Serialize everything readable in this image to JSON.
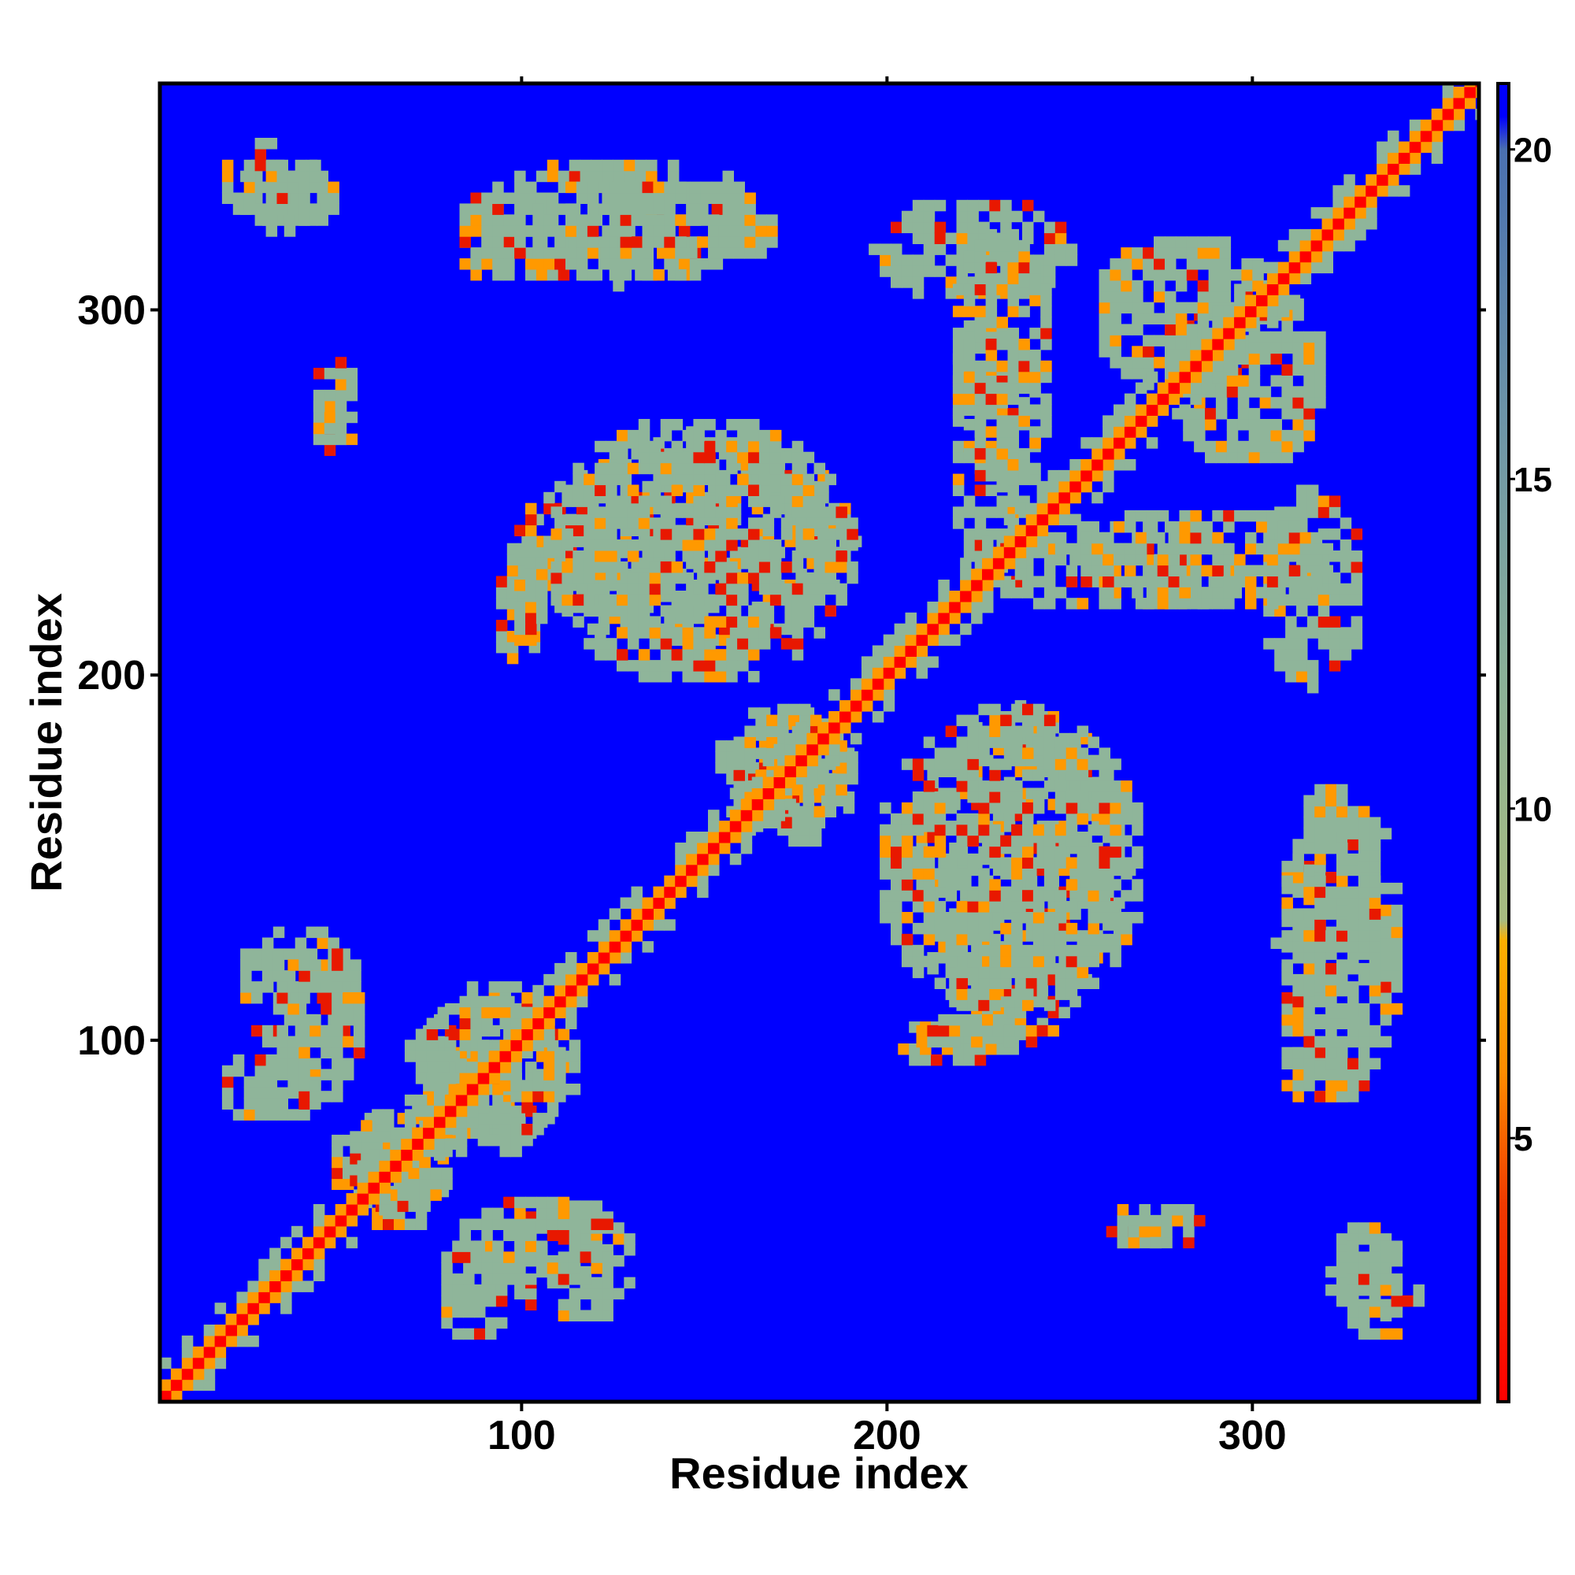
{
  "chart_data": {
    "type": "heatmap",
    "title": "",
    "xlabel": "Residue index",
    "ylabel": "Residue index",
    "xlim": [
      1,
      362
    ],
    "ylim": [
      1,
      362
    ],
    "x_ticks": [
      100,
      200,
      300
    ],
    "y_ticks": [
      100,
      200,
      300
    ],
    "x_tick_labels": [
      "100",
      "200",
      "300"
    ],
    "y_tick_labels": [
      "100",
      "200",
      "300"
    ],
    "grid": false,
    "legend": "none",
    "colorbar": {
      "placement": "right",
      "range": [
        1,
        21
      ],
      "ticks": [
        5,
        10,
        15,
        20
      ],
      "tick_labels": [
        "5",
        "10",
        "15",
        "20"
      ],
      "stops": [
        {
          "value": 1,
          "color": "#ff0000"
        },
        {
          "value": 4,
          "color": "#f03a00"
        },
        {
          "value": 6,
          "color": "#ff8c00"
        },
        {
          "value": 8,
          "color": "#ffb000"
        },
        {
          "value": 8.3,
          "color": "#a8bc80"
        },
        {
          "value": 12,
          "color": "#8ab098"
        },
        {
          "value": 16,
          "color": "#6c94a8"
        },
        {
          "value": 20,
          "color": "#4a70b0"
        },
        {
          "value": 20.5,
          "color": "#0000ff"
        },
        {
          "value": 21,
          "color": "#0000ff"
        }
      ]
    },
    "colors": {
      "background": "#0000ff",
      "contact_mid": "#8fb59a",
      "contact_close": "#ff9900",
      "contact_tight": "#e81800",
      "diagonal": "#ff0000"
    },
    "contact_regions": [
      {
        "x": [
          20,
          50
        ],
        "y": [
          320,
          340
        ]
      },
      {
        "x": [
          80,
          170
        ],
        "y": [
          305,
          340
        ]
      },
      {
        "x": [
          195,
          250
        ],
        "y": [
          300,
          330
        ]
      },
      {
        "x": [
          40,
          52
        ],
        "y": [
          260,
          275
        ]
      },
      {
        "x": [
          100,
          190
        ],
        "y": [
          205,
          265
        ]
      },
      {
        "x": [
          215,
          240
        ],
        "y": [
          225,
          300
        ]
      },
      {
        "x": [
          250,
          320
        ],
        "y": [
          215,
          245
        ]
      },
      {
        "x": [
          275,
          320
        ],
        "y": [
          255,
          305
        ]
      },
      {
        "x": [
          90,
          105
        ],
        "y": [
          200,
          235
        ]
      },
      {
        "x": [
          150,
          190
        ],
        "y": [
          155,
          190
        ]
      },
      {
        "x": [
          195,
          270
        ],
        "y": [
          105,
          190
        ]
      },
      {
        "x": [
          305,
          335
        ],
        "y": [
          100,
          155
        ]
      },
      {
        "x": [
          305,
          330
        ],
        "y": [
          80,
          100
        ]
      },
      {
        "x": [
          205,
          245
        ],
        "y": [
          95,
          105
        ]
      },
      {
        "x": [
          20,
          55
        ],
        "y": [
          95,
          130
        ]
      },
      {
        "x": [
          15,
          45
        ],
        "y": [
          75,
          95
        ]
      },
      {
        "x": [
          70,
          110
        ],
        "y": [
          65,
          115
        ]
      },
      {
        "x": [
          45,
          80
        ],
        "y": [
          50,
          80
        ]
      },
      {
        "x": [
          80,
          125
        ],
        "y": [
          30,
          55
        ]
      },
      {
        "x": [
          260,
          285
        ],
        "y": [
          40,
          55
        ]
      },
      {
        "x": [
          320,
          345
        ],
        "y": [
          15,
          45
        ]
      }
    ]
  }
}
